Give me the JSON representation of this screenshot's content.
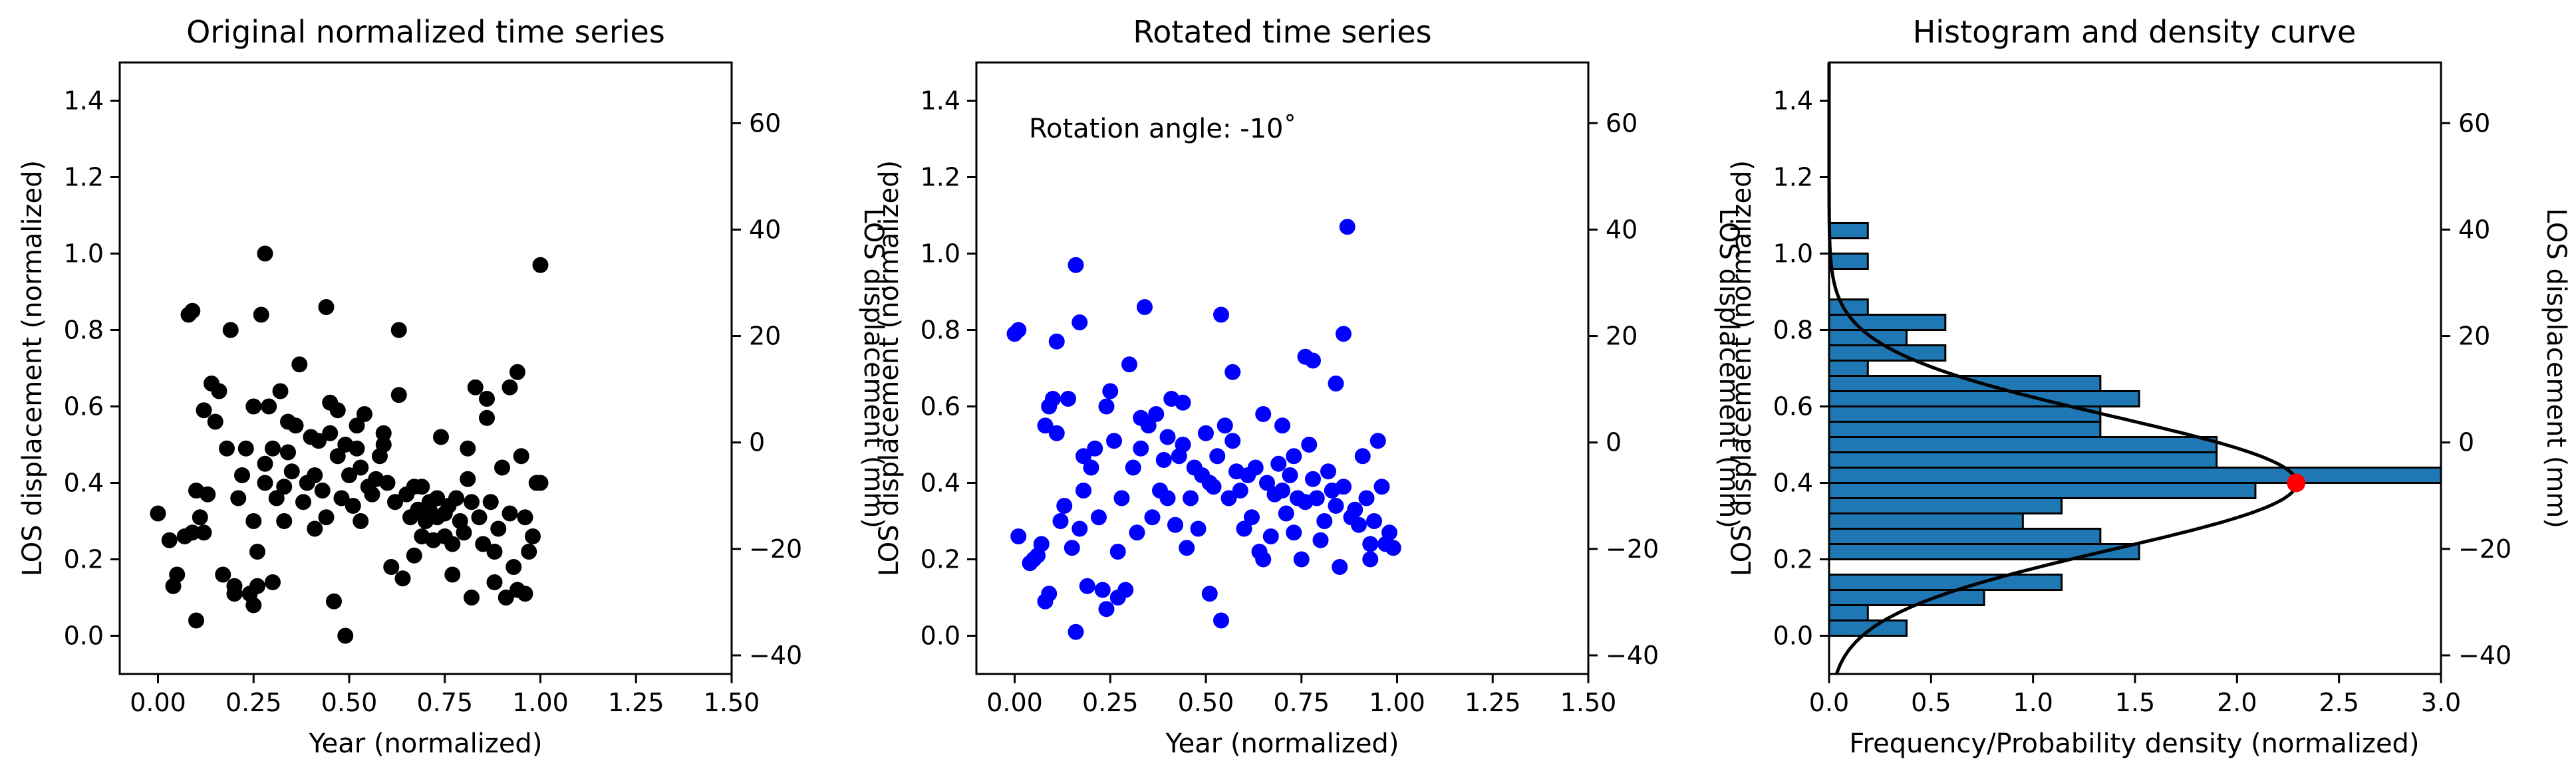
{
  "colors": {
    "panel1_points": "#000000",
    "panel2_points": "#0000ff",
    "annotation": "#ff0000",
    "hist_fill": "#1f77b4",
    "hist_edge": "#000000",
    "curve": "#000000",
    "marker": "#ff0000"
  },
  "chart_data": [
    {
      "type": "scatter",
      "title": "Original normalized time series",
      "xlabel": "Year (normalized)",
      "ylabel": "LOS displacement (normalized)",
      "ylabel_right": "LOS displacement (mm)",
      "xlim": [
        -0.1,
        1.5
      ],
      "ylim": [
        -0.1,
        1.5
      ],
      "xticks": [
        "0.00",
        "0.25",
        "0.50",
        "0.75",
        "1.00",
        "1.25",
        "1.50"
      ],
      "yticks": [
        "0.0",
        "0.2",
        "0.4",
        "0.6",
        "0.8",
        "1.0",
        "1.2",
        "1.4"
      ],
      "yticks_right": [
        "−40",
        "−20",
        "0",
        "20",
        "40",
        "60"
      ],
      "ylim_right": [
        -43.5,
        71.4
      ],
      "grid": false,
      "points": [
        [
          0.0,
          0.32
        ],
        [
          0.03,
          0.25
        ],
        [
          0.04,
          0.13
        ],
        [
          0.05,
          0.16
        ],
        [
          0.07,
          0.26
        ],
        [
          0.08,
          0.84
        ],
        [
          0.09,
          0.85
        ],
        [
          0.09,
          0.27
        ],
        [
          0.1,
          0.04
        ],
        [
          0.1,
          0.38
        ],
        [
          0.11,
          0.31
        ],
        [
          0.12,
          0.27
        ],
        [
          0.12,
          0.59
        ],
        [
          0.13,
          0.37
        ],
        [
          0.14,
          0.66
        ],
        [
          0.15,
          0.56
        ],
        [
          0.16,
          0.64
        ],
        [
          0.17,
          0.16
        ],
        [
          0.18,
          0.49
        ],
        [
          0.19,
          0.8
        ],
        [
          0.2,
          0.13
        ],
        [
          0.2,
          0.11
        ],
        [
          0.21,
          0.36
        ],
        [
          0.22,
          0.42
        ],
        [
          0.23,
          0.49
        ],
        [
          0.24,
          0.11
        ],
        [
          0.25,
          0.3
        ],
        [
          0.25,
          0.6
        ],
        [
          0.25,
          0.08
        ],
        [
          0.26,
          0.13
        ],
        [
          0.26,
          0.22
        ],
        [
          0.27,
          0.84
        ],
        [
          0.28,
          1.0
        ],
        [
          0.28,
          0.45
        ],
        [
          0.28,
          0.4
        ],
        [
          0.29,
          0.6
        ],
        [
          0.3,
          0.49
        ],
        [
          0.3,
          0.14
        ],
        [
          0.31,
          0.36
        ],
        [
          0.32,
          0.64
        ],
        [
          0.33,
          0.39
        ],
        [
          0.33,
          0.3
        ],
        [
          0.34,
          0.56
        ],
        [
          0.34,
          0.48
        ],
        [
          0.35,
          0.43
        ],
        [
          0.36,
          0.55
        ],
        [
          0.37,
          0.71
        ],
        [
          0.38,
          0.35
        ],
        [
          0.39,
          0.4
        ],
        [
          0.4,
          0.52
        ],
        [
          0.41,
          0.28
        ],
        [
          0.41,
          0.42
        ],
        [
          0.42,
          0.51
        ],
        [
          0.43,
          0.38
        ],
        [
          0.44,
          0.86
        ],
        [
          0.44,
          0.31
        ],
        [
          0.45,
          0.61
        ],
        [
          0.45,
          0.53
        ],
        [
          0.46,
          0.09
        ],
        [
          0.47,
          0.47
        ],
        [
          0.47,
          0.59
        ],
        [
          0.48,
          0.36
        ],
        [
          0.49,
          0.0
        ],
        [
          0.49,
          0.5
        ],
        [
          0.5,
          0.42
        ],
        [
          0.51,
          0.34
        ],
        [
          0.52,
          0.49
        ],
        [
          0.52,
          0.55
        ],
        [
          0.53,
          0.44
        ],
        [
          0.53,
          0.3
        ],
        [
          0.54,
          0.58
        ],
        [
          0.55,
          0.39
        ],
        [
          0.56,
          0.37
        ],
        [
          0.57,
          0.41
        ],
        [
          0.58,
          0.47
        ],
        [
          0.59,
          0.53
        ],
        [
          0.59,
          0.5
        ],
        [
          0.6,
          0.4
        ],
        [
          0.61,
          0.18
        ],
        [
          0.62,
          0.35
        ],
        [
          0.63,
          0.8
        ],
        [
          0.63,
          0.63
        ],
        [
          0.64,
          0.15
        ],
        [
          0.65,
          0.37
        ],
        [
          0.66,
          0.31
        ],
        [
          0.67,
          0.39
        ],
        [
          0.67,
          0.21
        ],
        [
          0.68,
          0.33
        ],
        [
          0.69,
          0.26
        ],
        [
          0.69,
          0.39
        ],
        [
          0.7,
          0.3
        ],
        [
          0.71,
          0.35
        ],
        [
          0.71,
          0.33
        ],
        [
          0.72,
          0.25
        ],
        [
          0.73,
          0.36
        ],
        [
          0.73,
          0.31
        ],
        [
          0.74,
          0.52
        ],
        [
          0.75,
          0.26
        ],
        [
          0.75,
          0.32
        ],
        [
          0.76,
          0.34
        ],
        [
          0.77,
          0.24
        ],
        [
          0.77,
          0.16
        ],
        [
          0.78,
          0.36
        ],
        [
          0.79,
          0.3
        ],
        [
          0.8,
          0.27
        ],
        [
          0.81,
          0.41
        ],
        [
          0.81,
          0.49
        ],
        [
          0.82,
          0.35
        ],
        [
          0.82,
          0.1
        ],
        [
          0.83,
          0.65
        ],
        [
          0.84,
          0.31
        ],
        [
          0.85,
          0.24
        ],
        [
          0.86,
          0.62
        ],
        [
          0.86,
          0.57
        ],
        [
          0.87,
          0.35
        ],
        [
          0.88,
          0.14
        ],
        [
          0.88,
          0.22
        ],
        [
          0.89,
          0.28
        ],
        [
          0.9,
          0.44
        ],
        [
          0.91,
          0.1
        ],
        [
          0.92,
          0.65
        ],
        [
          0.92,
          0.32
        ],
        [
          0.93,
          0.18
        ],
        [
          0.94,
          0.69
        ],
        [
          0.94,
          0.12
        ],
        [
          0.95,
          0.47
        ],
        [
          0.96,
          0.31
        ],
        [
          0.96,
          0.11
        ],
        [
          0.97,
          0.22
        ],
        [
          0.98,
          0.26
        ],
        [
          0.99,
          0.4
        ],
        [
          1.0,
          0.97
        ],
        [
          1.0,
          0.4
        ]
      ]
    },
    {
      "type": "scatter",
      "title": "Rotated time series",
      "xlabel": "Year (normalized)",
      "ylabel": "LOS displacement (normalized)",
      "ylabel_right": "LOS displacement (mm)",
      "annotation": "Rotation angle: -10˚",
      "xlim": [
        -0.1,
        1.5
      ],
      "ylim": [
        -0.1,
        1.5
      ],
      "xticks": [
        "0.00",
        "0.25",
        "0.50",
        "0.75",
        "1.00",
        "1.25",
        "1.50"
      ],
      "yticks": [
        "0.0",
        "0.2",
        "0.4",
        "0.6",
        "0.8",
        "1.0",
        "1.2",
        "1.4"
      ],
      "yticks_right": [
        "−40",
        "−20",
        "0",
        "20",
        "40",
        "60"
      ],
      "ylim_right": [
        -43.5,
        71.4
      ],
      "grid": false,
      "points": [
        [
          0.0,
          0.79
        ],
        [
          0.01,
          0.8
        ],
        [
          0.01,
          0.26
        ],
        [
          0.04,
          0.19
        ],
        [
          0.05,
          0.2
        ],
        [
          0.06,
          0.21
        ],
        [
          0.07,
          0.24
        ],
        [
          0.08,
          0.55
        ],
        [
          0.08,
          0.09
        ],
        [
          0.09,
          0.11
        ],
        [
          0.09,
          0.6
        ],
        [
          0.1,
          0.62
        ],
        [
          0.11,
          0.53
        ],
        [
          0.11,
          0.77
        ],
        [
          0.12,
          0.3
        ],
        [
          0.13,
          0.34
        ],
        [
          0.14,
          0.62
        ],
        [
          0.15,
          0.23
        ],
        [
          0.16,
          0.97
        ],
        [
          0.16,
          0.01
        ],
        [
          0.17,
          0.82
        ],
        [
          0.17,
          0.28
        ],
        [
          0.18,
          0.47
        ],
        [
          0.18,
          0.38
        ],
        [
          0.19,
          0.13
        ],
        [
          0.2,
          0.44
        ],
        [
          0.21,
          0.49
        ],
        [
          0.22,
          0.31
        ],
        [
          0.23,
          0.12
        ],
        [
          0.24,
          0.07
        ],
        [
          0.24,
          0.6
        ],
        [
          0.25,
          0.64
        ],
        [
          0.26,
          0.51
        ],
        [
          0.27,
          0.1
        ],
        [
          0.27,
          0.22
        ],
        [
          0.28,
          0.36
        ],
        [
          0.29,
          0.12
        ],
        [
          0.3,
          0.71
        ],
        [
          0.31,
          0.44
        ],
        [
          0.32,
          0.27
        ],
        [
          0.33,
          0.49
        ],
        [
          0.33,
          0.57
        ],
        [
          0.34,
          0.86
        ],
        [
          0.35,
          0.55
        ],
        [
          0.36,
          0.31
        ],
        [
          0.37,
          0.58
        ],
        [
          0.38,
          0.38
        ],
        [
          0.39,
          0.46
        ],
        [
          0.4,
          0.52
        ],
        [
          0.4,
          0.36
        ],
        [
          0.41,
          0.62
        ],
        [
          0.42,
          0.29
        ],
        [
          0.43,
          0.47
        ],
        [
          0.44,
          0.61
        ],
        [
          0.44,
          0.5
        ],
        [
          0.45,
          0.23
        ],
        [
          0.46,
          0.36
        ],
        [
          0.47,
          0.44
        ],
        [
          0.48,
          0.28
        ],
        [
          0.49,
          0.42
        ],
        [
          0.5,
          0.53
        ],
        [
          0.51,
          0.11
        ],
        [
          0.51,
          0.4
        ],
        [
          0.52,
          0.39
        ],
        [
          0.53,
          0.47
        ],
        [
          0.54,
          0.84
        ],
        [
          0.54,
          0.04
        ],
        [
          0.55,
          0.55
        ],
        [
          0.56,
          0.36
        ],
        [
          0.57,
          0.51
        ],
        [
          0.57,
          0.69
        ],
        [
          0.58,
          0.43
        ],
        [
          0.59,
          0.38
        ],
        [
          0.6,
          0.28
        ],
        [
          0.61,
          0.42
        ],
        [
          0.62,
          0.31
        ],
        [
          0.63,
          0.44
        ],
        [
          0.64,
          0.22
        ],
        [
          0.65,
          0.2
        ],
        [
          0.65,
          0.58
        ],
        [
          0.66,
          0.4
        ],
        [
          0.67,
          0.26
        ],
        [
          0.68,
          0.37
        ],
        [
          0.69,
          0.45
        ],
        [
          0.7,
          0.55
        ],
        [
          0.7,
          0.38
        ],
        [
          0.71,
          0.32
        ],
        [
          0.72,
          0.42
        ],
        [
          0.73,
          0.47
        ],
        [
          0.73,
          0.27
        ],
        [
          0.74,
          0.36
        ],
        [
          0.75,
          0.2
        ],
        [
          0.76,
          0.73
        ],
        [
          0.76,
          0.35
        ],
        [
          0.77,
          0.5
        ],
        [
          0.78,
          0.41
        ],
        [
          0.78,
          0.72
        ],
        [
          0.79,
          0.36
        ],
        [
          0.8,
          0.25
        ],
        [
          0.81,
          0.3
        ],
        [
          0.82,
          0.43
        ],
        [
          0.83,
          0.38
        ],
        [
          0.84,
          0.66
        ],
        [
          0.84,
          0.34
        ],
        [
          0.85,
          0.18
        ],
        [
          0.86,
          0.79
        ],
        [
          0.86,
          0.39
        ],
        [
          0.87,
          1.07
        ],
        [
          0.88,
          0.31
        ],
        [
          0.89,
          0.33
        ],
        [
          0.9,
          0.29
        ],
        [
          0.91,
          0.47
        ],
        [
          0.92,
          0.36
        ],
        [
          0.93,
          0.24
        ],
        [
          0.93,
          0.2
        ],
        [
          0.94,
          0.3
        ],
        [
          0.95,
          0.51
        ],
        [
          0.96,
          0.39
        ],
        [
          0.97,
          0.24
        ],
        [
          0.98,
          0.27
        ],
        [
          0.99,
          0.23
        ]
      ]
    },
    {
      "type": "bar",
      "orientation": "horizontal",
      "title": "Histogram and density curve",
      "xlabel": "Frequency/Probability density (normalized)",
      "ylabel": "LOS displacement (normalized)",
      "ylabel_right": "LOS displacement (mm)",
      "xlim": [
        0.0,
        3.0
      ],
      "ylim": [
        -0.1,
        1.5
      ],
      "xticks": [
        "0.0",
        "0.5",
        "1.0",
        "1.5",
        "2.0",
        "2.5",
        "3.0"
      ],
      "yticks": [
        "0.0",
        "0.2",
        "0.4",
        "0.6",
        "0.8",
        "1.0",
        "1.2",
        "1.4"
      ],
      "yticks_right": [
        "−40",
        "−20",
        "0",
        "20",
        "40",
        "60"
      ],
      "ylim_right": [
        -43.5,
        71.4
      ],
      "grid": false,
      "bins": [
        {
          "y0": 0.0,
          "y1": 0.04,
          "value": 0.38
        },
        {
          "y0": 0.04,
          "y1": 0.08,
          "value": 0.19
        },
        {
          "y0": 0.08,
          "y1": 0.12,
          "value": 0.76
        },
        {
          "y0": 0.12,
          "y1": 0.16,
          "value": 1.14
        },
        {
          "y0": 0.16,
          "y1": 0.2,
          "value": 0.0
        },
        {
          "y0": 0.2,
          "y1": 0.24,
          "value": 1.52
        },
        {
          "y0": 0.24,
          "y1": 0.28,
          "value": 1.33
        },
        {
          "y0": 0.28,
          "y1": 0.32,
          "value": 0.95
        },
        {
          "y0": 0.32,
          "y1": 0.36,
          "value": 1.14
        },
        {
          "y0": 0.36,
          "y1": 0.4,
          "value": 2.09
        },
        {
          "y0": 0.4,
          "y1": 0.44,
          "value": 3.0
        },
        {
          "y0": 0.44,
          "y1": 0.48,
          "value": 1.9
        },
        {
          "y0": 0.48,
          "y1": 0.52,
          "value": 1.9
        },
        {
          "y0": 0.52,
          "y1": 0.56,
          "value": 1.33
        },
        {
          "y0": 0.56,
          "y1": 0.6,
          "value": 1.33
        },
        {
          "y0": 0.6,
          "y1": 0.64,
          "value": 1.52
        },
        {
          "y0": 0.64,
          "y1": 0.68,
          "value": 1.33
        },
        {
          "y0": 0.68,
          "y1": 0.72,
          "value": 0.19
        },
        {
          "y0": 0.72,
          "y1": 0.76,
          "value": 0.57
        },
        {
          "y0": 0.76,
          "y1": 0.8,
          "value": 0.38
        },
        {
          "y0": 0.8,
          "y1": 0.84,
          "value": 0.57
        },
        {
          "y0": 0.84,
          "y1": 0.88,
          "value": 0.19
        },
        {
          "y0": 0.88,
          "y1": 0.92,
          "value": 0.0
        },
        {
          "y0": 0.92,
          "y1": 0.96,
          "value": 0.0
        },
        {
          "y0": 0.96,
          "y1": 1.0,
          "value": 0.19
        },
        {
          "y0": 1.0,
          "y1": 1.04,
          "value": 0.0
        },
        {
          "y0": 1.04,
          "y1": 1.08,
          "value": 0.19
        }
      ],
      "density_curve": {
        "mean": 0.4,
        "sd": 0.174
      },
      "peak_marker": [
        2.29,
        0.4
      ]
    }
  ]
}
